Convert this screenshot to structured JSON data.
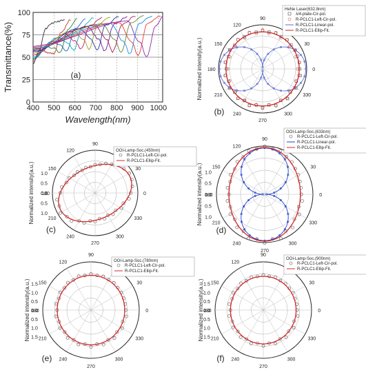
{
  "chart_data": [
    {
      "panel": "(a)",
      "type": "line",
      "xlabel": "Wavelength(nm)",
      "ylabel": "Transmittance(%)",
      "xlim": [
        400,
        1020
      ],
      "ylim": [
        0,
        100
      ],
      "xticks": [
        400,
        500,
        600,
        700,
        800,
        900,
        1000
      ],
      "yticks": [
        0,
        25,
        50,
        75,
        100
      ],
      "grid": "dashed",
      "series": [
        {
          "color": "#2b2b2b",
          "values": {
            "x": [
              400,
              430,
              460,
              490,
              520,
              550
            ],
            "y": [
              43,
              58,
              82,
              88,
              90,
              92
            ]
          }
        },
        {
          "color": "#c0392b",
          "values": {
            "x": [
              400,
              440,
              470,
              500,
              535,
              580
            ],
            "y": [
              45,
              58,
              55,
              54,
              78,
              92
            ]
          }
        },
        {
          "color": "#2e7d32",
          "values": {
            "x": [
              400,
              460,
              500,
              530,
              565,
              610
            ],
            "y": [
              47,
              62,
              60,
              55,
              80,
              93
            ]
          }
        },
        {
          "color": "#1565c0",
          "values": {
            "x": [
              400,
              490,
              530,
              560,
              600,
              650
            ],
            "y": [
              48,
              68,
              64,
              57,
              82,
              93
            ]
          }
        },
        {
          "color": "#00acc1",
          "values": {
            "x": [
              400,
              520,
              565,
              595,
              635,
              690
            ],
            "y": [
              50,
              72,
              66,
              58,
              84,
              94
            ]
          }
        },
        {
          "color": "#c2185b",
          "values": {
            "x": [
              400,
              555,
              600,
              630,
              670,
              730
            ],
            "y": [
              52,
              76,
              68,
              59,
              85,
              94
            ]
          }
        },
        {
          "color": "#9e9d24",
          "values": {
            "x": [
              400,
              590,
              640,
              668,
              710,
              770
            ],
            "y": [
              54,
              80,
              70,
              59,
              86,
              95
            ]
          }
        },
        {
          "color": "#283593",
          "values": {
            "x": [
              400,
              625,
              678,
              705,
              748,
              810
            ],
            "y": [
              56,
              82,
              70,
              58,
              86,
              95
            ]
          }
        },
        {
          "color": "#6a1b9a",
          "values": {
            "x": [
              400,
              660,
              715,
              742,
              788,
              850
            ],
            "y": [
              57,
              84,
              70,
              57,
              87,
              95
            ]
          }
        },
        {
          "color": "#ad1457",
          "values": {
            "x": [
              400,
              695,
              752,
              780,
              828,
              890
            ],
            "y": [
              58,
              86,
              70,
              56,
              87,
              96
            ]
          }
        },
        {
          "color": "#558b2f",
          "values": {
            "x": [
              400,
              730,
              792,
              820,
              868,
              930
            ],
            "y": [
              59,
              87,
              69,
              55,
              88,
              96
            ]
          }
        },
        {
          "color": "#1e88e5",
          "values": {
            "x": [
              400,
              770,
              832,
              862,
              908,
              970
            ],
            "y": [
              60,
              88,
              68,
              54,
              88,
              96
            ]
          }
        },
        {
          "color": "#e53935",
          "values": {
            "x": [
              400,
              810,
              872,
              902,
              948,
              1010
            ],
            "y": [
              61,
              89,
              67,
              52,
              88,
              96
            ]
          }
        },
        {
          "color": "#8e24aa",
          "values": {
            "x": [
              400,
              850,
              912,
              944,
              985,
              1020
            ],
            "y": [
              62,
              90,
              66,
              50,
              84,
              95
            ]
          }
        }
      ]
    },
    {
      "panel": "(b)",
      "type": "polar",
      "ylabel": "Normalized intensity(a.u.)",
      "angle_ticks": [
        "0",
        "30",
        "60",
        "90",
        "120",
        "150",
        "180",
        "210",
        "240",
        "270",
        "300",
        "330"
      ],
      "radial_ticks": [],
      "legend_title": "HeNe Laser(632.8nm)",
      "series": [
        {
          "name": "λ/4-plate-Cir-pol.",
          "marker": "square-open",
          "color": "#555555",
          "rx": 0.84,
          "ry": 0.86,
          "tilt": 0
        },
        {
          "name": "R-PCLC1-Left-Cir-pol.",
          "marker": "circle-open",
          "color": "#d9534f",
          "rx": 0.82,
          "ry": 0.85,
          "tilt": 0
        },
        {
          "name": "R-PCLC1-Linear-pol.",
          "marker": "line-dot",
          "color": "#5a6bd0",
          "lobes": "horizontal",
          "amp": 0.94,
          "tilt": 0
        },
        {
          "name": "R-PCLC1-Ellip-Fit.",
          "marker": "line",
          "color": "#c62828",
          "rx": 0.83,
          "ry": 0.84,
          "tilt": 0
        }
      ]
    },
    {
      "panel": "(c)",
      "type": "polar",
      "ylabel": "Normalized intensity(a.u.)",
      "angle_ticks": [
        "0",
        "30",
        "60",
        "90",
        "120",
        "150",
        "180",
        "210",
        "240",
        "270",
        "300",
        "330"
      ],
      "radial_ticks": [
        "0.0",
        "0.5",
        "1.0"
      ],
      "legend_title": "OOI-Lamp-Soc.(450nm)",
      "series": [
        {
          "name": "R-PCLC1-Left-Cir-pol.",
          "marker": "circle-open",
          "color": "#555555",
          "rx": 0.92,
          "ry": 0.62,
          "tilt": 25
        },
        {
          "name": "R-PCLC1-Ellip-Fit.",
          "marker": "line",
          "color": "#d62728",
          "rx": 0.9,
          "ry": 0.61,
          "tilt": 25
        }
      ]
    },
    {
      "panel": "(d)",
      "type": "polar",
      "ylabel": "Normalized intensity(a.u.)",
      "angle_ticks": [
        "0",
        "30",
        "60",
        "90",
        "120",
        "150",
        "180",
        "210",
        "240",
        "270",
        "300",
        "330"
      ],
      "radial_ticks": [
        "0.0",
        "0.5",
        "1.0"
      ],
      "legend_title": "OOI-Lamp-Soc.(633nm)",
      "series": [
        {
          "name": "R-PCLC1-Left-Cir-pol.",
          "marker": "circle-open",
          "color": "#555555",
          "rx": 0.76,
          "ry": 0.98,
          "tilt": 0
        },
        {
          "name": "R-PCLC1-Linear-pol.",
          "marker": "line-dot",
          "color": "#1f3fcf",
          "lobes": "vertical",
          "amp": 0.92,
          "tilt": 0
        },
        {
          "name": "R-PCLC1-Ellip-Fit.",
          "marker": "line",
          "color": "#d62728",
          "rx": 0.74,
          "ry": 0.97,
          "tilt": 0
        }
      ]
    },
    {
      "panel": "(e)",
      "type": "polar",
      "ylabel": "Normalized intensity(a.u.)",
      "angle_ticks": [
        "0",
        "30",
        "60",
        "90",
        "120",
        "150",
        "180",
        "210",
        "240",
        "270",
        "300",
        "330"
      ],
      "radial_ticks": [
        "0.0",
        "0.5",
        "1.0",
        "1.5"
      ],
      "legend_title": "OOI-Lamp-Soc.(780nm)",
      "series": [
        {
          "name": "R-PCLC1-Left-Cir-pol.",
          "marker": "circle-open",
          "color": "#555555",
          "rx": 0.72,
          "ry": 0.74,
          "tilt": 0
        },
        {
          "name": "R-PCLC1-Ellip-Fit.",
          "marker": "line",
          "color": "#d62728",
          "rx": 0.7,
          "ry": 0.72,
          "tilt": 0
        }
      ]
    },
    {
      "panel": "(f)",
      "type": "polar",
      "ylabel": "Normalized intensity(a.u.)",
      "angle_ticks": [
        "0",
        "30",
        "60",
        "90",
        "120",
        "150",
        "180",
        "210",
        "240",
        "270",
        "300",
        "330"
      ],
      "radial_ticks": [
        "0.0",
        "0.5",
        "1.0",
        "1.5"
      ],
      "legend_title": "OOI-Lamp-Soc.(900nm)",
      "series": [
        {
          "name": "R-PCLC1-Left-Cir-pol.",
          "marker": "circle-open",
          "color": "#555555",
          "rx": 0.7,
          "ry": 0.72,
          "tilt": 0
        },
        {
          "name": "R-PCLC1-Ellip-Fit.",
          "marker": "line",
          "color": "#d62728",
          "rx": 0.68,
          "ry": 0.7,
          "tilt": 0
        }
      ]
    }
  ]
}
